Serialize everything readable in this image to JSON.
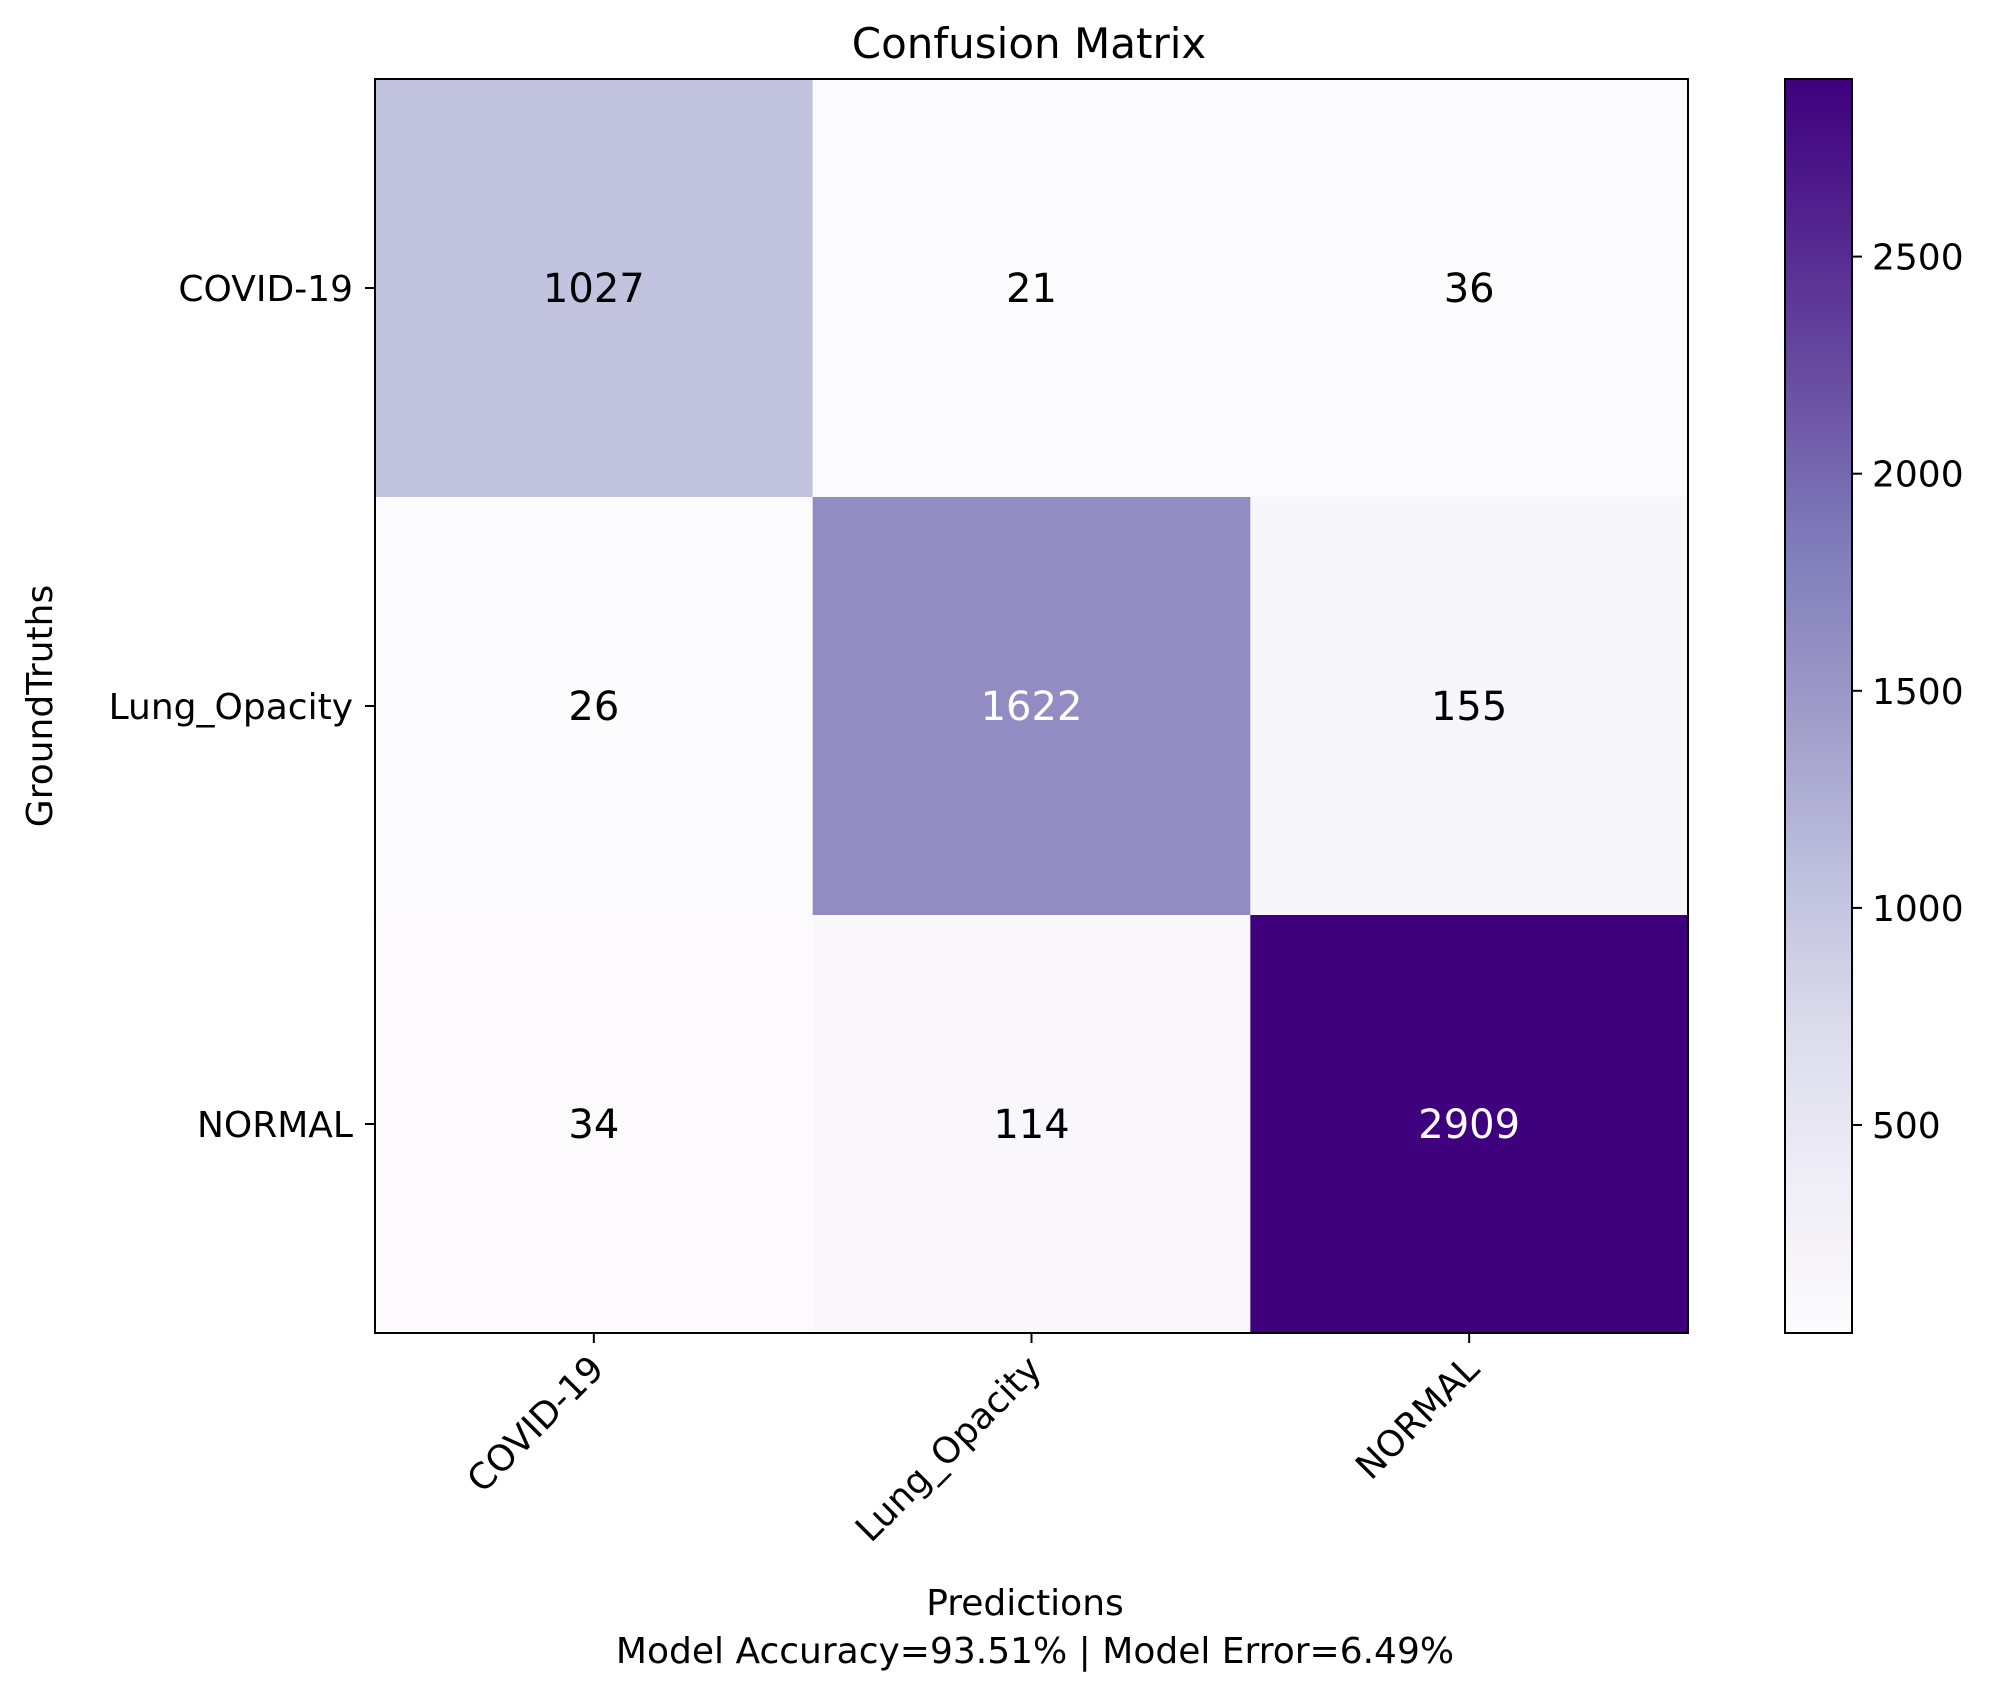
{
  "chart_data": {
    "type": "heatmap",
    "title": "Confusion Matrix",
    "xlabel": "Predictions",
    "xlabel_note": "Model Accuracy=93.51% | Model Error=6.49%",
    "ylabel": "GroundTruths",
    "x_categories": [
      "COVID-19",
      "Lung_Opacity",
      "NORMAL"
    ],
    "y_categories": [
      "COVID-19",
      "Lung_Opacity",
      "NORMAL"
    ],
    "matrix": [
      [
        1027,
        21,
        36
      ],
      [
        26,
        1622,
        155
      ],
      [
        34,
        114,
        2909
      ]
    ],
    "colormap": "Purples",
    "colorbar": {
      "range": [
        21,
        2909
      ],
      "ticks": [
        500,
        1000,
        1500,
        2000,
        2500
      ]
    },
    "grid": false
  }
}
